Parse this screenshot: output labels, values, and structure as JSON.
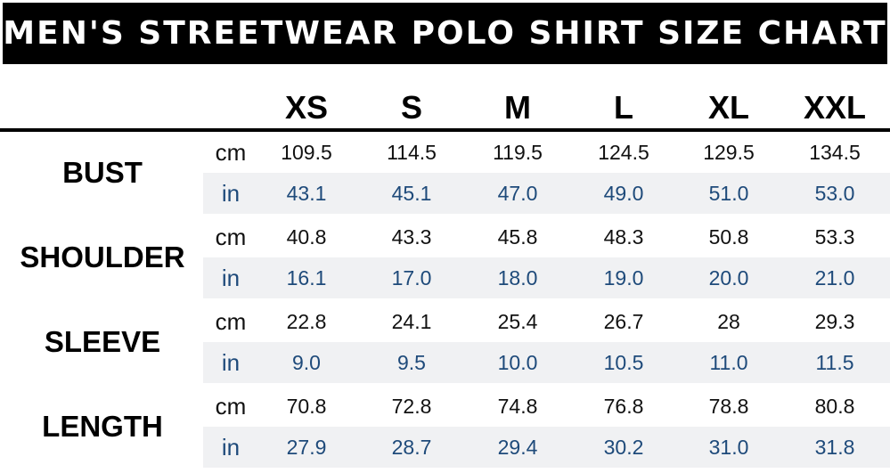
{
  "title": "MEN'S STREETWEAR POLO SHIRT SIZE CHART",
  "sizes": [
    "XS",
    "S",
    "M",
    "L",
    "XL",
    "XXL"
  ],
  "units": {
    "cm": "cm",
    "in": "in"
  },
  "colors": {
    "title_bg": "#000000",
    "title_text": "#ffffff",
    "inch_text": "#1e4a7a",
    "stripe": "#f0f1f3"
  },
  "rows": [
    {
      "label": "BUST",
      "cm": [
        "109.5",
        "114.5",
        "119.5",
        "124.5",
        "129.5",
        "134.5"
      ],
      "in": [
        "43.1",
        "45.1",
        "47.0",
        "49.0",
        "51.0",
        "53.0"
      ]
    },
    {
      "label": "SHOULDER",
      "cm": [
        "40.8",
        "43.3",
        "45.8",
        "48.3",
        "50.8",
        "53.3"
      ],
      "in": [
        "16.1",
        "17.0",
        "18.0",
        "19.0",
        "20.0",
        "21.0"
      ]
    },
    {
      "label": "SLEEVE",
      "cm": [
        "22.8",
        "24.1",
        "25.4",
        "26.7",
        "28",
        "29.3"
      ],
      "in": [
        "9.0",
        "9.5",
        "10.0",
        "10.5",
        "11.0",
        "11.5"
      ]
    },
    {
      "label": "LENGTH",
      "cm": [
        "70.8",
        "72.8",
        "74.8",
        "76.8",
        "78.8",
        "80.8"
      ],
      "in": [
        "27.9",
        "28.7",
        "29.4",
        "30.2",
        "31.0",
        "31.8"
      ]
    }
  ]
}
